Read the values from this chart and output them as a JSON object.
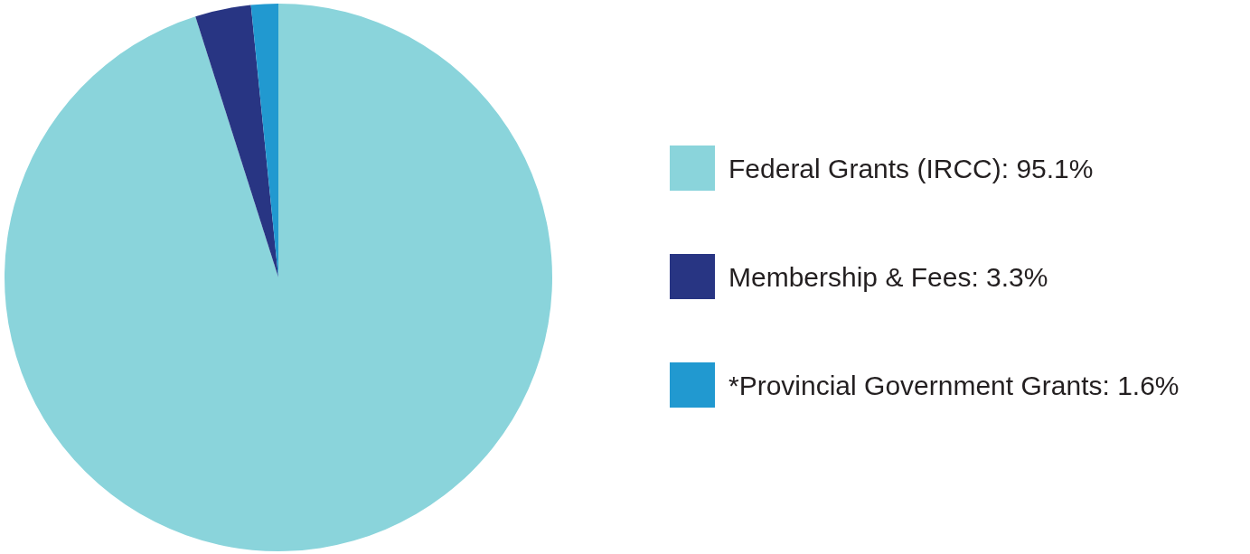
{
  "chart_data": {
    "type": "pie",
    "categories": [
      "Federal Grants (IRCC): 95.1%",
      "Membership & Fees: 3.3%",
      "*Provincial Government Grants: 1.6%"
    ],
    "values": [
      95.1,
      3.3,
      1.6
    ],
    "colors": [
      "#8ad4db",
      "#283583",
      "#2199d0"
    ],
    "legend": "right"
  }
}
